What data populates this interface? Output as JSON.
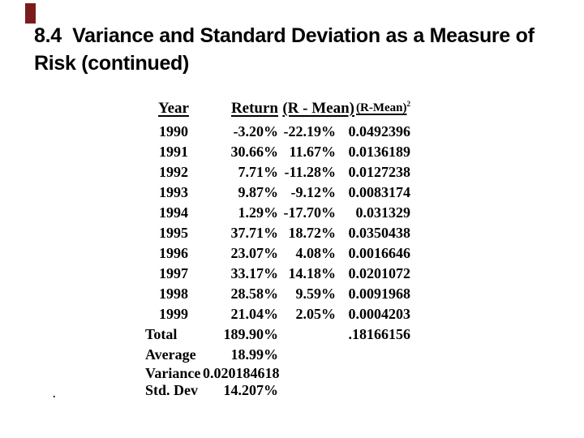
{
  "slide": {
    "title_line1": "8.4  Variance and Standard Deviation as a Measure of",
    "title_line2": "Risk (continued)",
    "accent_color": "#7a1c1c",
    "footnote_mark": "."
  },
  "table": {
    "headers": [
      {
        "text": "Year",
        "sup": ""
      },
      {
        "text": "Return",
        "sup": ""
      },
      {
        "text": "(R - Mean)",
        "sup": ""
      },
      {
        "text": "(R-Mean)",
        "sup": "2"
      }
    ],
    "rows": [
      {
        "year": "1990",
        "ret": "-3.20%",
        "dev": "-22.19%",
        "sq": "0.0492396"
      },
      {
        "year": "1991",
        "ret": "30.66%",
        "dev": "11.67%",
        "sq": "0.0136189"
      },
      {
        "year": "1992",
        "ret": "7.71%",
        "dev": "-11.28%",
        "sq": "0.0127238"
      },
      {
        "year": "1993",
        "ret": "9.87%",
        "dev": "-9.12%",
        "sq": "0.0083174"
      },
      {
        "year": "1994",
        "ret": "1.29%",
        "dev": "-17.70%",
        "sq": "0.031329"
      },
      {
        "year": "1995",
        "ret": "37.71%",
        "dev": "18.72%",
        "sq": "0.0350438"
      },
      {
        "year": "1996",
        "ret": "23.07%",
        "dev": "4.08%",
        "sq": "0.0016646"
      },
      {
        "year": "1997",
        "ret": "33.17%",
        "dev": "14.18%",
        "sq": "0.0201072"
      },
      {
        "year": "1998",
        "ret": "28.58%",
        "dev": "9.59%",
        "sq": "0.0091968"
      },
      {
        "year": "1999",
        "ret": "21.04%",
        "dev": "2.05%",
        "sq": "0.0004203"
      }
    ],
    "summary": [
      {
        "label": "Total",
        "ret": "189.90%",
        "sq": ".18166156"
      },
      {
        "label": "Average",
        "ret": "18.99%",
        "sq": ""
      },
      {
        "label": "Variance",
        "ret": "0.020184618",
        "sq": ""
      },
      {
        "label": "Std. Dev",
        "ret": "14.207%",
        "sq": ""
      }
    ]
  }
}
